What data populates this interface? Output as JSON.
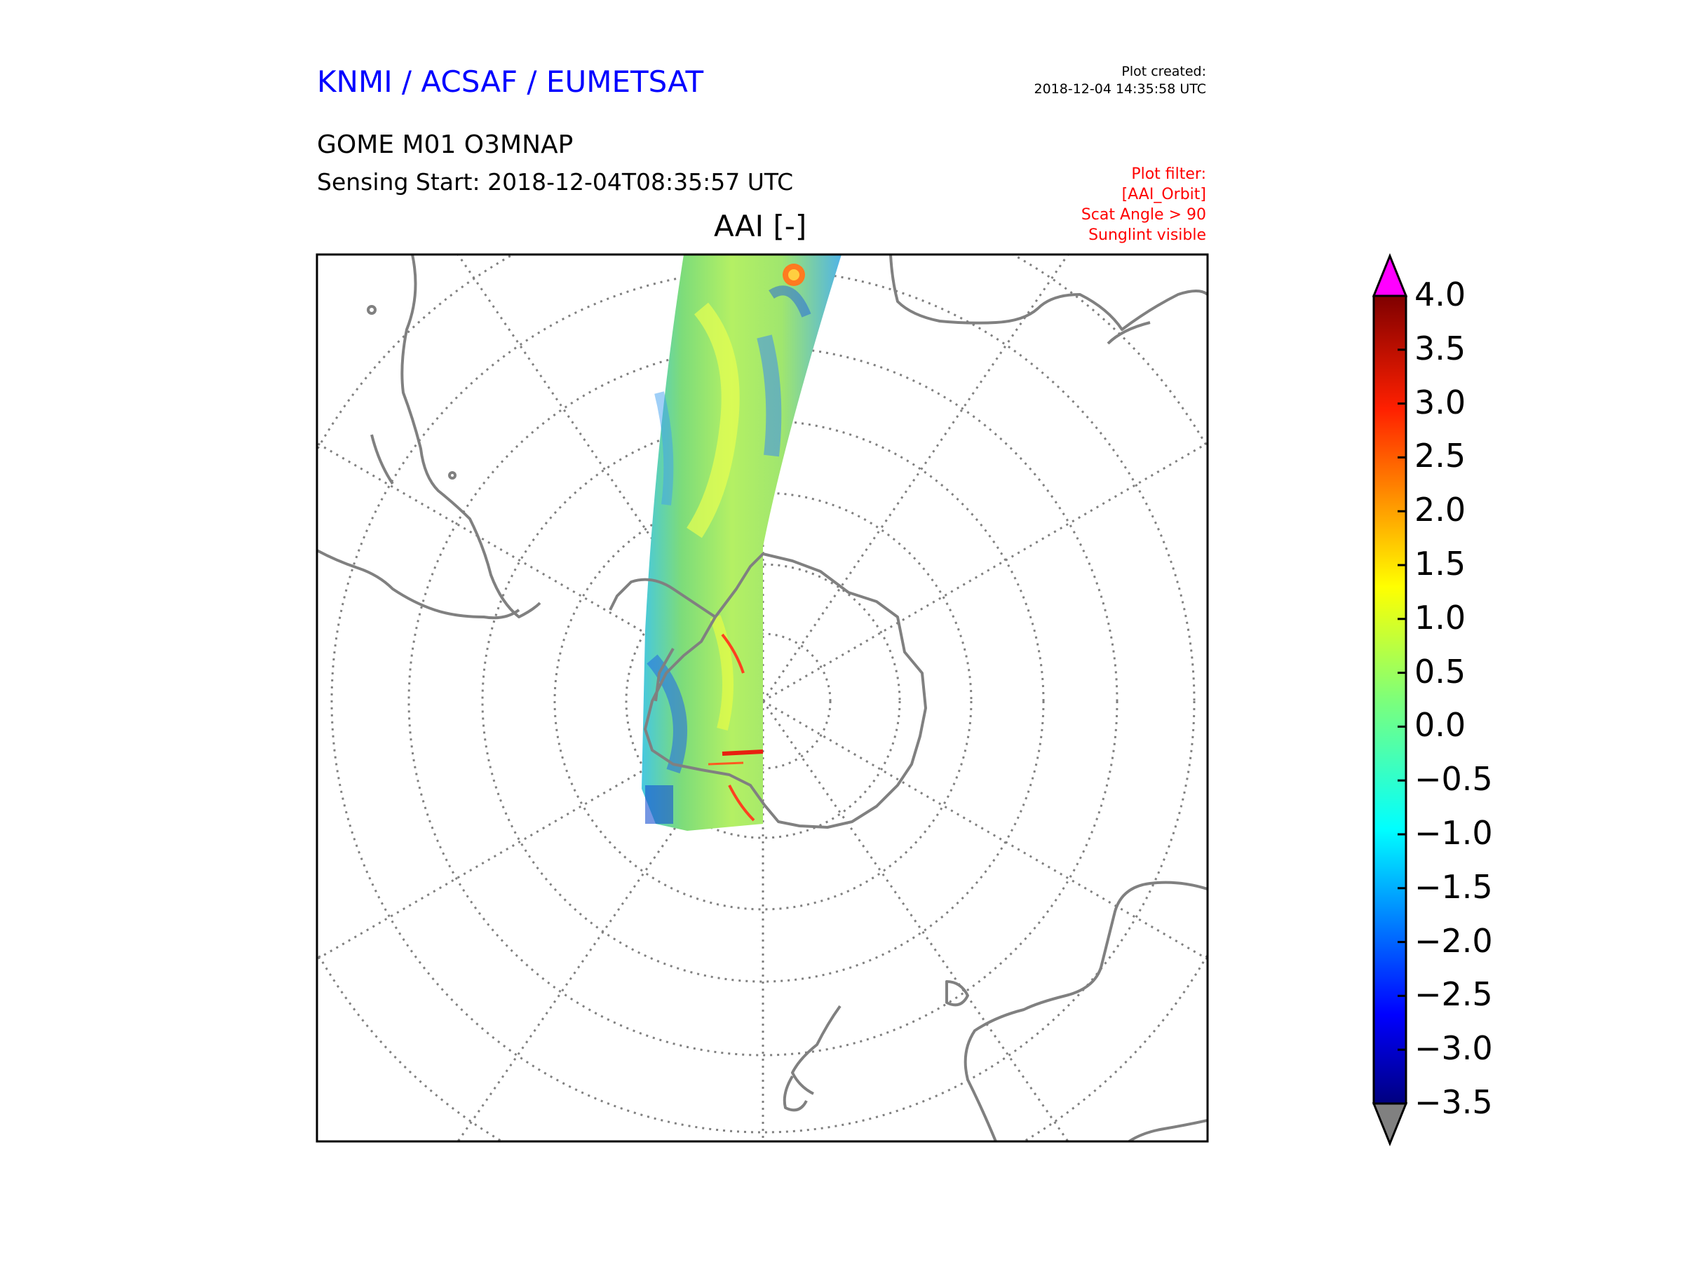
{
  "header": {
    "organization": "KNMI / ACSAF / EUMETSAT",
    "plot_created_label": "Plot created:",
    "plot_created_value": "2018-12-04 14:35:58 UTC",
    "product": "GOME M01 O3MNAP",
    "sensing_start": "Sensing Start: 2018-12-04T08:35:57 UTC",
    "filter_lines": [
      "Plot filter:",
      "[AAI_Orbit]",
      "Scat Angle > 90",
      "Sunglint visible"
    ]
  },
  "map": {
    "title": "AAI [-]",
    "projection": "south polar stereographic",
    "variable": "Absorbing Aerosol Index",
    "colors": {
      "org_text": "#0000ff",
      "filter_text": "#ff0000",
      "coastline": "#808080",
      "graticule": "#808080",
      "over_color": "#ff00ff",
      "under_color": "#808080"
    }
  },
  "colorbar": {
    "min": -3.5,
    "max": 4.0,
    "tick_labels": [
      "4.0",
      "3.5",
      "3.0",
      "2.5",
      "2.0",
      "1.5",
      "1.0",
      "0.5",
      "0.0",
      "−0.5",
      "−1.0",
      "−1.5",
      "−2.0",
      "−2.5",
      "−3.0",
      "−3.5"
    ],
    "colormap": "jet",
    "extend": "both"
  }
}
